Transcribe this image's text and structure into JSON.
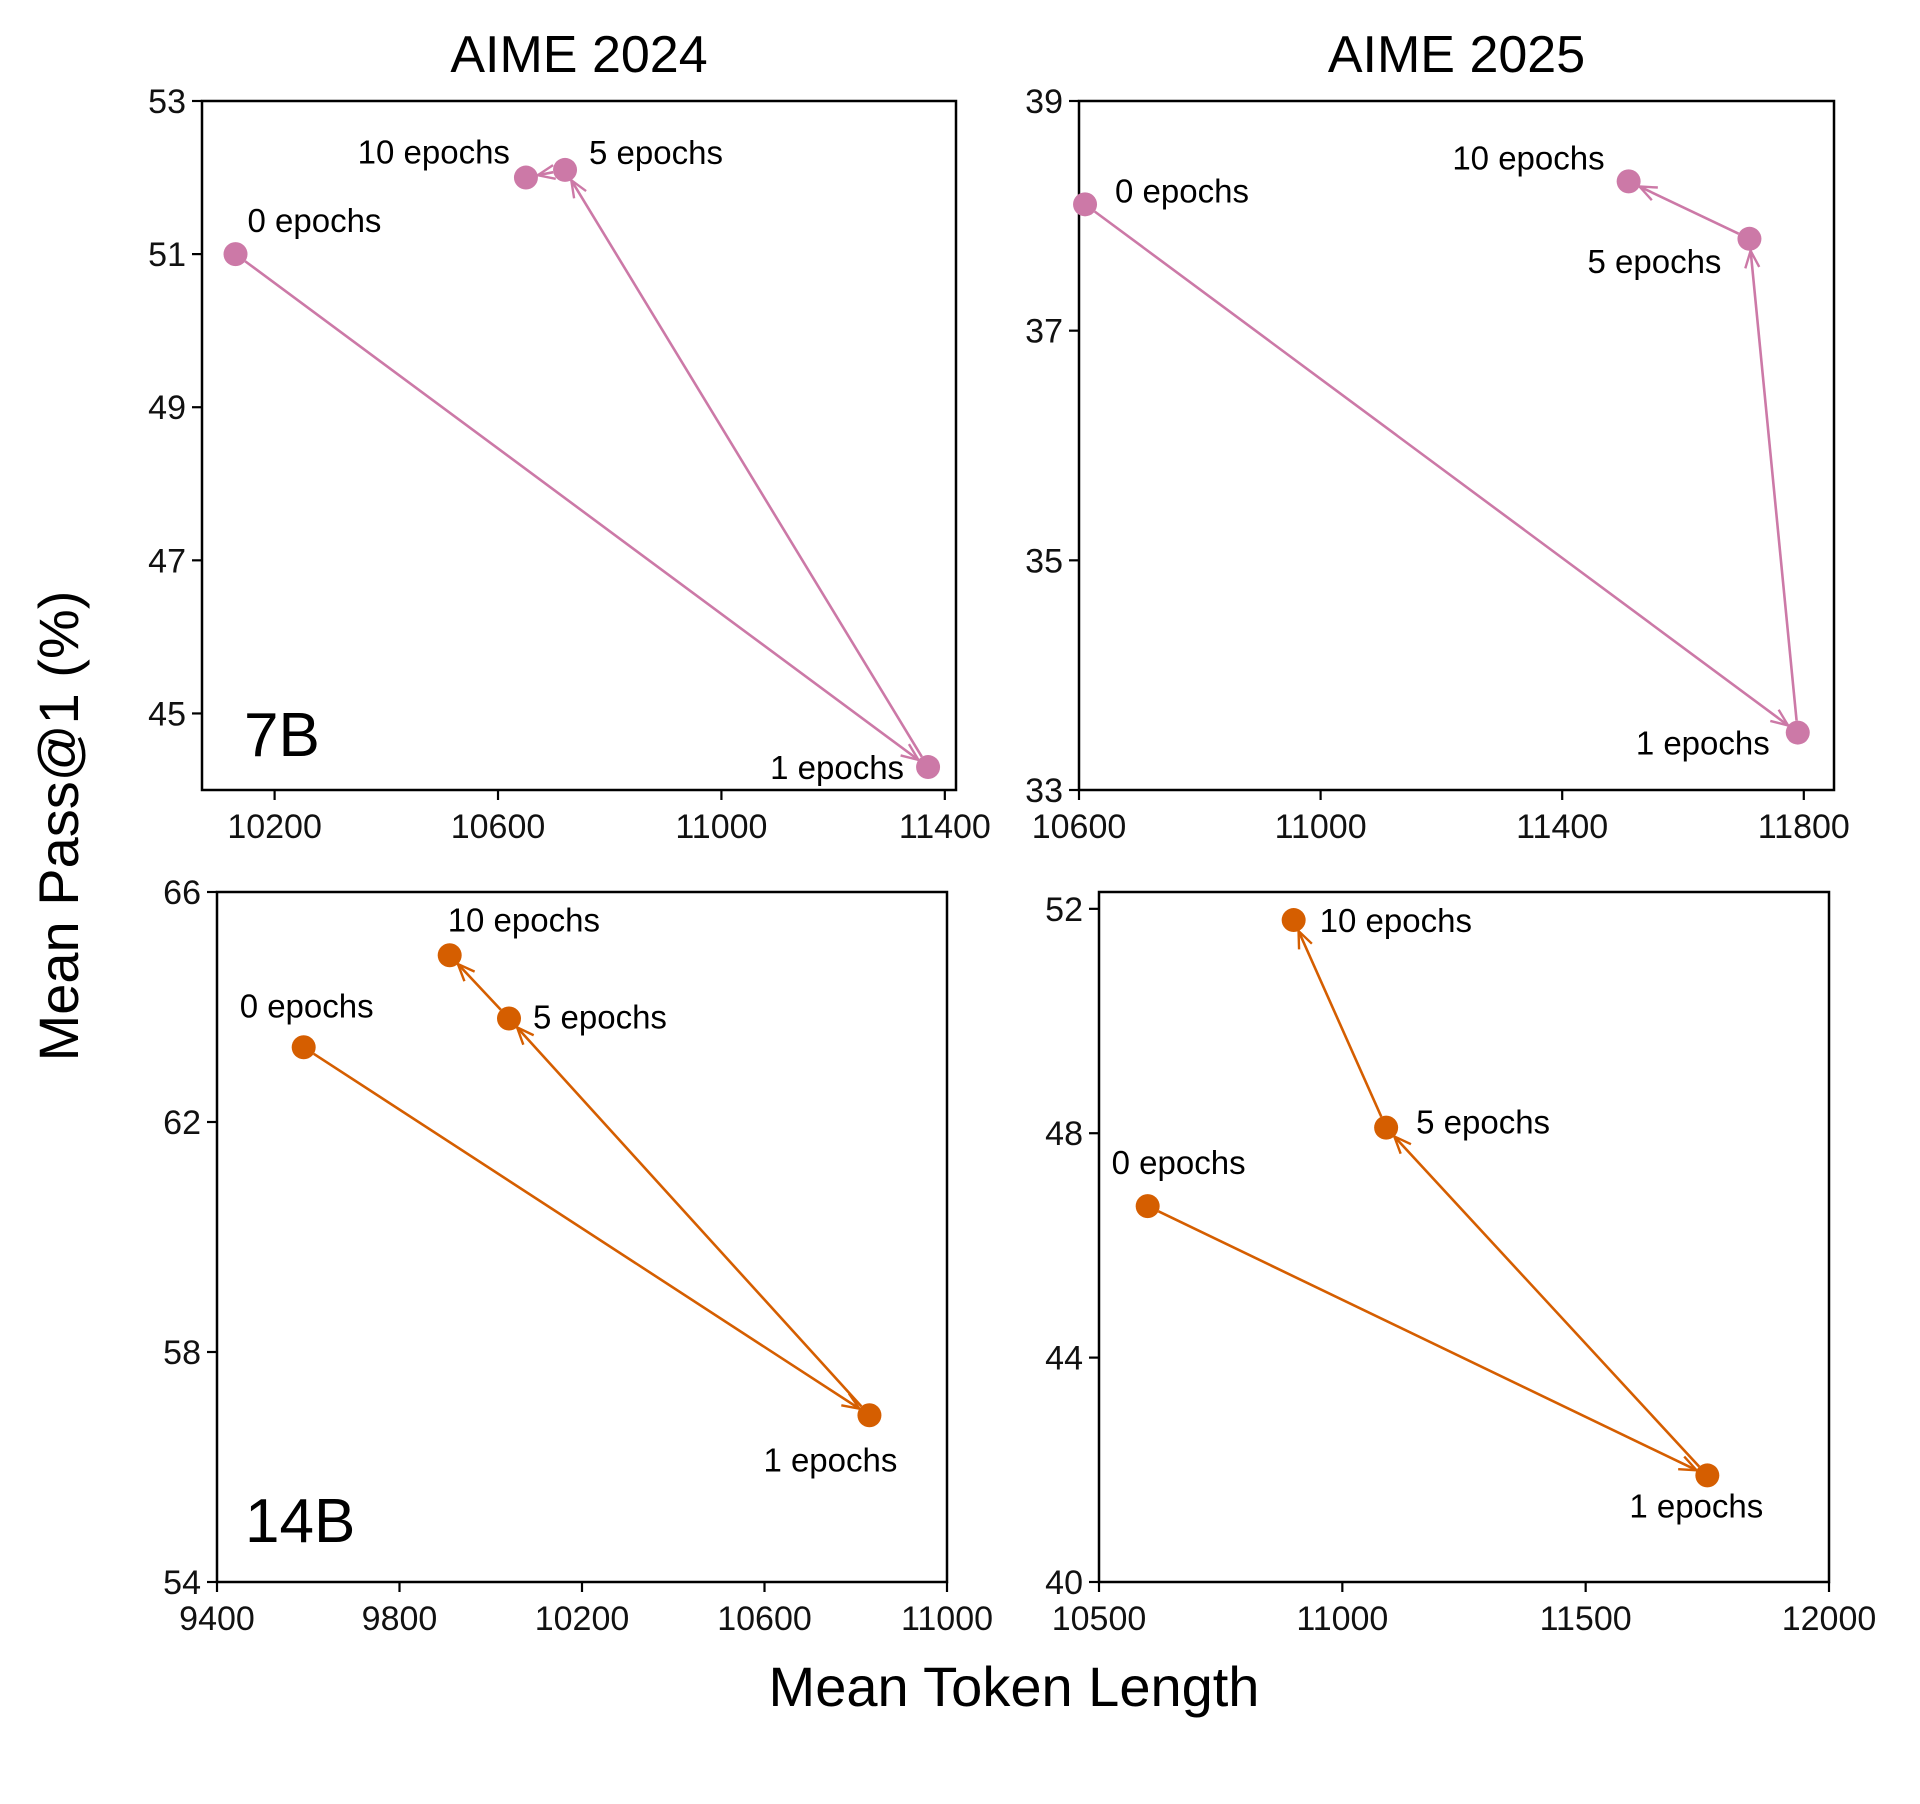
{
  "figure": {
    "xlabel": "Mean Token Length",
    "ylabel": "Mean Pass@1 (%)"
  },
  "chart_data": [
    {
      "type": "line",
      "title": "AIME 2024",
      "model_tag": "7B",
      "color": "#cc79a7",
      "xlim": [
        10070,
        11420
      ],
      "ylim": [
        44,
        53
      ],
      "xticks": [
        10200,
        10600,
        11000,
        11400
      ],
      "yticks": [
        45,
        47,
        49,
        51,
        53
      ],
      "points": [
        {
          "label": "0 epochs",
          "x": 10130,
          "y": 51.0
        },
        {
          "label": "1 epochs",
          "x": 11370,
          "y": 44.3
        },
        {
          "label": "5 epochs",
          "x": 10720,
          "y": 52.1
        },
        {
          "label": "10 epochs",
          "x": 10650,
          "y": 52.0
        }
      ]
    },
    {
      "type": "line",
      "title": "AIME 2025",
      "model_tag": "",
      "color": "#cc79a7",
      "xlim": [
        10600,
        11850
      ],
      "ylim": [
        33,
        39
      ],
      "xticks": [
        10600,
        11000,
        11400,
        11800
      ],
      "yticks": [
        33,
        35,
        37,
        39
      ],
      "points": [
        {
          "label": "0 epochs",
          "x": 10610,
          "y": 38.1
        },
        {
          "label": "1 epochs",
          "x": 11790,
          "y": 33.5
        },
        {
          "label": "5 epochs",
          "x": 11710,
          "y": 37.8
        },
        {
          "label": "10 epochs",
          "x": 11510,
          "y": 38.3
        }
      ]
    },
    {
      "type": "line",
      "title": "",
      "model_tag": "14B",
      "color": "#d55e00",
      "xlim": [
        9400,
        11000
      ],
      "ylim": [
        54,
        66
      ],
      "xticks": [
        9400,
        9800,
        10200,
        10600,
        11000
      ],
      "yticks": [
        54,
        58,
        62,
        66
      ],
      "points": [
        {
          "label": "0 epochs",
          "x": 9590,
          "y": 63.3
        },
        {
          "label": "1 epochs",
          "x": 10830,
          "y": 56.9
        },
        {
          "label": "5 epochs",
          "x": 10040,
          "y": 63.8
        },
        {
          "label": "10 epochs",
          "x": 9910,
          "y": 64.9
        }
      ]
    },
    {
      "type": "line",
      "title": "",
      "model_tag": "",
      "color": "#d55e00",
      "xlim": [
        10500,
        12000
      ],
      "ylim": [
        40,
        52.3
      ],
      "xticks": [
        10500,
        11000,
        11500,
        12000
      ],
      "yticks": [
        40,
        44,
        48,
        52
      ],
      "points": [
        {
          "label": "0 epochs",
          "x": 10600,
          "y": 46.7
        },
        {
          "label": "1 epochs",
          "x": 11750,
          "y": 41.9
        },
        {
          "label": "5 epochs",
          "x": 11090,
          "y": 48.1
        },
        {
          "label": "10 epochs",
          "x": 10900,
          "y": 51.8
        }
      ]
    }
  ]
}
